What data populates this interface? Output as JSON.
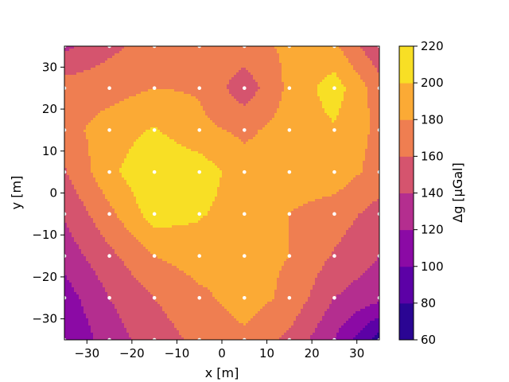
{
  "chart_data": {
    "type": "contour",
    "xlabel": "x [m]",
    "ylabel": "y [m]",
    "colorbar_label": "Δg [µGal]",
    "xlim": [
      -35,
      35
    ],
    "ylim": [
      -35,
      35
    ],
    "xticks": [
      -30,
      -20,
      -10,
      0,
      10,
      20,
      30
    ],
    "yticks": [
      -30,
      -20,
      -10,
      0,
      10,
      20,
      30
    ],
    "colorbar_ticks": [
      60,
      80,
      100,
      120,
      140,
      160,
      180,
      200,
      220
    ],
    "colormap": "plasma",
    "levels": [
      {
        "range": [
          60,
          80
        ],
        "color": "#2a0593"
      },
      {
        "range": [
          80,
          100
        ],
        "color": "#5c01a6"
      },
      {
        "range": [
          100,
          120
        ],
        "color": "#8b0aa5"
      },
      {
        "range": [
          120,
          140
        ],
        "color": "#b42e8f"
      },
      {
        "range": [
          140,
          160
        ],
        "color": "#d5546e"
      },
      {
        "range": [
          160,
          180
        ],
        "color": "#ef7e51"
      },
      {
        "range": [
          180,
          200
        ],
        "color": "#fbaa35"
      },
      {
        "range": [
          200,
          220
        ],
        "color": "#f8df25"
      }
    ],
    "grid_x": [
      -35,
      -25,
      -15,
      -5,
      5,
      15,
      25,
      35
    ],
    "grid_y": [
      35,
      25,
      15,
      5,
      -5,
      -15,
      -25,
      -35
    ],
    "z": [
      [
        135,
        155,
        168,
        172,
        172,
        184,
        184,
        142
      ],
      [
        170,
        172,
        180,
        178,
        148,
        185,
        210,
        170
      ],
      [
        172,
        190,
        202,
        185,
        176,
        188,
        198,
        175
      ],
      [
        158,
        195,
        218,
        212,
        188,
        190,
        192,
        172
      ],
      [
        142,
        175,
        210,
        202,
        190,
        180,
        170,
        152
      ],
      [
        128,
        155,
        180,
        190,
        185,
        180,
        158,
        140
      ],
      [
        110,
        140,
        160,
        175,
        190,
        175,
        140,
        125
      ],
      [
        100,
        130,
        150,
        165,
        175,
        155,
        120,
        70
      ]
    ],
    "stations": {
      "x": [
        -35,
        -25,
        -15,
        -5,
        5,
        15,
        25,
        35
      ],
      "y": [
        35,
        25,
        15,
        5,
        -5,
        -15,
        -25,
        -35
      ],
      "color": "#ffffff"
    }
  }
}
